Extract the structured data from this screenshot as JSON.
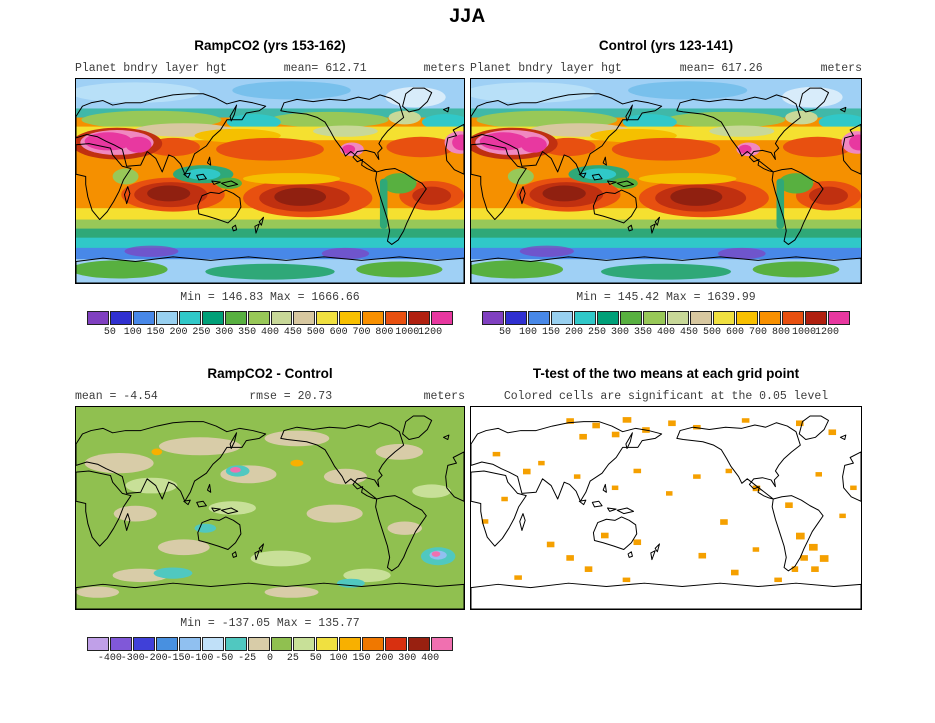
{
  "figure": {
    "title": "JJA"
  },
  "panels": {
    "ramp": {
      "title": "RampCO2 (yrs 153-162)",
      "var_label": "Planet bndry layer hgt",
      "mean": "mean=  612.71",
      "units": "meters",
      "minmax": "Min = 146.83 Max = 1666.66"
    },
    "control": {
      "title": "Control (yrs 123-141)",
      "var_label": "Planet bndry layer hgt",
      "mean": "mean=  617.26",
      "units": "meters",
      "minmax": "Min = 145.42 Max = 1639.99"
    },
    "diff": {
      "title": "RampCO2 - Control",
      "mean": "mean =  -4.54",
      "rmse": "rmse =  20.73",
      "units": "meters",
      "minmax": "Min = -137.05 Max = 135.77"
    },
    "ttest": {
      "title": "T-test of the two means at each grid point",
      "subtitle": "Colored cells are significant at the 0.05 level",
      "significant_color": "#F5A000"
    }
  },
  "colorbars": {
    "absolute": {
      "ticks": [
        "50",
        "100",
        "150",
        "200",
        "250",
        "300",
        "350",
        "400",
        "450",
        "500",
        "600",
        "700",
        "800",
        "1000",
        "1200"
      ],
      "colors": [
        "#8040C0",
        "#3030D0",
        "#4888E8",
        "#98D0F0",
        "#30C8C8",
        "#00A078",
        "#58B040",
        "#98C858",
        "#C8D898",
        "#D8C8A0",
        "#F0E040",
        "#F8C000",
        "#F89000",
        "#E85010",
        "#B02010",
        "#E838A0"
      ]
    },
    "difference": {
      "ticks": [
        "-400",
        "-300",
        "-200",
        "-150",
        "-100",
        "-50",
        "-25",
        "0",
        "25",
        "50",
        "100",
        "150",
        "200",
        "300",
        "400"
      ],
      "colors": [
        "#C0A0E8",
        "#8058D8",
        "#4040D8",
        "#4890E0",
        "#90C0F0",
        "#C0E0F8",
        "#50C8C0",
        "#D8CCA8",
        "#90C050",
        "#C8E098",
        "#F0E040",
        "#F8B000",
        "#F07800",
        "#D83010",
        "#982010",
        "#F070B0"
      ]
    }
  },
  "chart_data": [
    {
      "type": "heatmap",
      "subtype": "filled-contour world map (0-360E, 90S-90N)",
      "title": "RampCO2 (yrs 153-162)",
      "season": "JJA",
      "variable": "Planet bndry layer hgt",
      "units": "meters",
      "mean": 612.71,
      "min": 146.83,
      "max": 1666.66,
      "contour_levels": [
        50,
        100,
        150,
        200,
        250,
        300,
        350,
        400,
        450,
        500,
        600,
        700,
        800,
        1000,
        1200
      ]
    },
    {
      "type": "heatmap",
      "subtype": "filled-contour world map (0-360E, 90S-90N)",
      "title": "Control (yrs 123-141)",
      "season": "JJA",
      "variable": "Planet bndry layer hgt",
      "units": "meters",
      "mean": 617.26,
      "min": 145.42,
      "max": 1639.99,
      "contour_levels": [
        50,
        100,
        150,
        200,
        250,
        300,
        350,
        400,
        450,
        500,
        600,
        700,
        800,
        1000,
        1200
      ]
    },
    {
      "type": "heatmap",
      "subtype": "filled-contour world map difference (RampCO2 minus Control)",
      "title": "RampCO2 - Control",
      "season": "JJA",
      "variable": "Planet bndry layer hgt",
      "units": "meters",
      "mean": -4.54,
      "rmse": 20.73,
      "min": -137.05,
      "max": 135.77,
      "contour_levels": [
        -400,
        -300,
        -200,
        -150,
        -100,
        -50,
        -25,
        0,
        25,
        50,
        100,
        150,
        200,
        300,
        400
      ]
    },
    {
      "type": "heatmap",
      "subtype": "significance mask world map",
      "title": "T-test of the two means at each grid point",
      "note": "Colored cells are significant at the 0.05 level",
      "significance_level": 0.05
    }
  ]
}
